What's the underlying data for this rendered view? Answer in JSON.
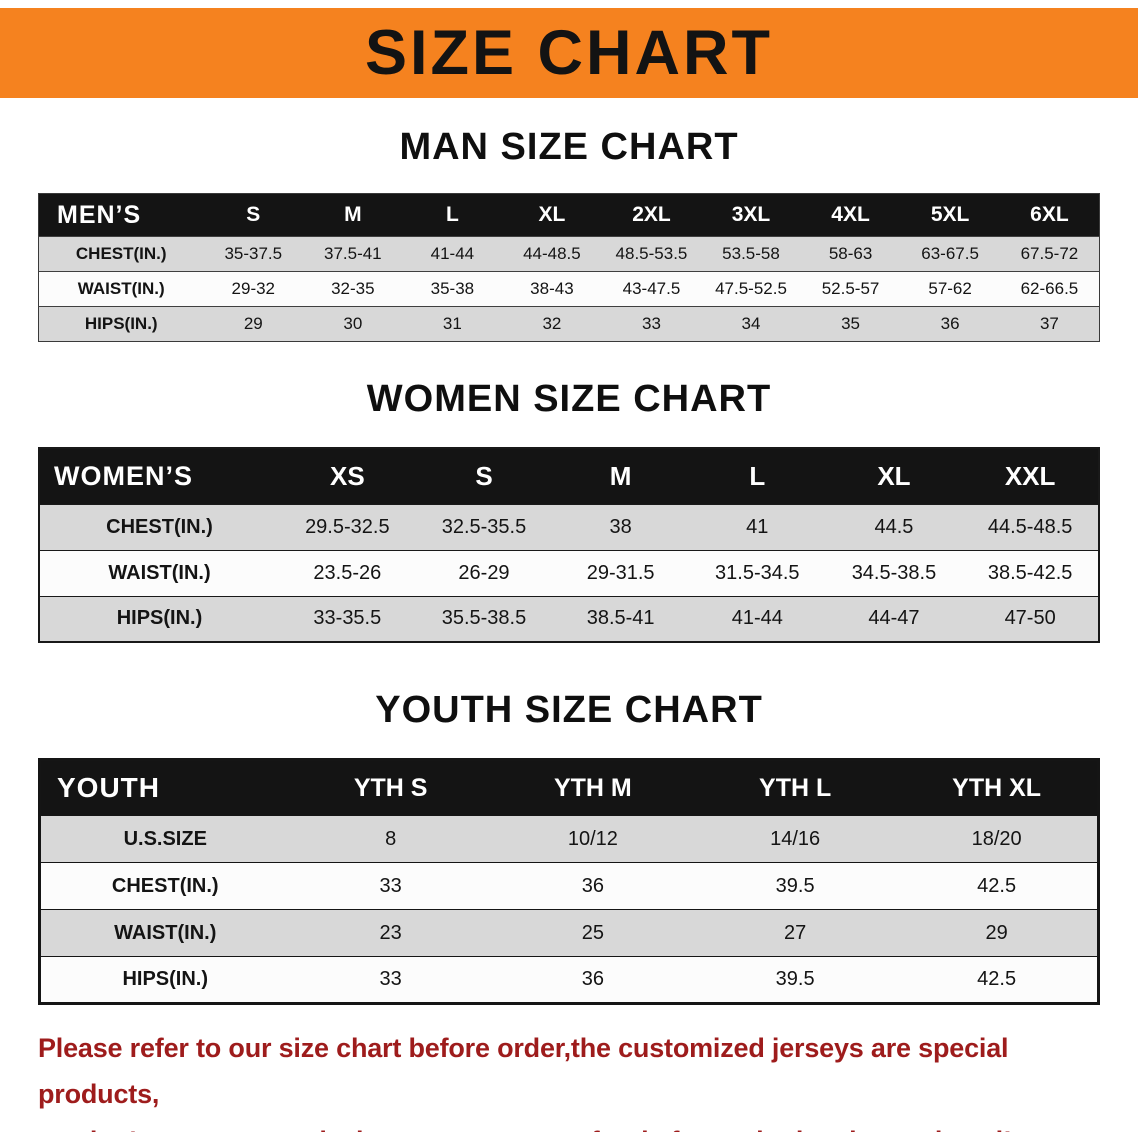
{
  "colors": {
    "banner-orange": "#F5821F",
    "header-black": "#141414",
    "row-gray": "#D8D8D8",
    "row-white": "#FCFCFC",
    "note-red": "#9E1C1C"
  },
  "banner": {
    "title": "SIZE CHART"
  },
  "sections": [
    {
      "id": "men",
      "heading": "MAN SIZE CHART",
      "table": {
        "header": [
          "MEN’S",
          "S",
          "M",
          "L",
          "XL",
          "2XL",
          "3XL",
          "4XL",
          "5XL",
          "6XL"
        ],
        "rows": [
          [
            "CHEST(IN.)",
            "35-37.5",
            "37.5-41",
            "41-44",
            "44-48.5",
            "48.5-53.5",
            "53.5-58",
            "58-63",
            "63-67.5",
            "67.5-72"
          ],
          [
            "WAIST(IN.)",
            "29-32",
            "32-35",
            "35-38",
            "38-43",
            "43-47.5",
            "47.5-52.5",
            "52.5-57",
            "57-62",
            "62-66.5"
          ],
          [
            "HIPS(IN.)",
            "29",
            "30",
            "31",
            "32",
            "33",
            "34",
            "35",
            "36",
            "37"
          ]
        ]
      }
    },
    {
      "id": "women",
      "heading": "WOMEN SIZE CHART",
      "table": {
        "header": [
          "WOMEN’S",
          "XS",
          "S",
          "M",
          "L",
          "XL",
          "XXL"
        ],
        "rows": [
          [
            "CHEST(IN.)",
            "29.5-32.5",
            "32.5-35.5",
            "38",
            "41",
            "44.5",
            "44.5-48.5"
          ],
          [
            "WAIST(IN.)",
            "23.5-26",
            "26-29",
            "29-31.5",
            "31.5-34.5",
            "34.5-38.5",
            "38.5-42.5"
          ],
          [
            "HIPS(IN.)",
            "33-35.5",
            "35.5-38.5",
            "38.5-41",
            "41-44",
            "44-47",
            "47-50"
          ]
        ]
      }
    },
    {
      "id": "youth",
      "heading": "YOUTH SIZE CHART",
      "table": {
        "header": [
          "YOUTH",
          "YTH S",
          "YTH M",
          "YTH L",
          "YTH XL"
        ],
        "rows": [
          [
            "U.S.SIZE",
            "8",
            "10/12",
            "14/16",
            "18/20"
          ],
          [
            "CHEST(IN.)",
            "33",
            "36",
            "39.5",
            "42.5"
          ],
          [
            "WAIST(IN.)",
            "23",
            "25",
            "27",
            "29"
          ],
          [
            "HIPS(IN.)",
            "33",
            "36",
            "39.5",
            "42.5"
          ]
        ]
      }
    }
  ],
  "note": {
    "line1": "Please refer to our size chart before order,the customized jerseys are special products,",
    "line2": "we don't accept cancel, change, teturn or refund after order has been placed!"
  }
}
